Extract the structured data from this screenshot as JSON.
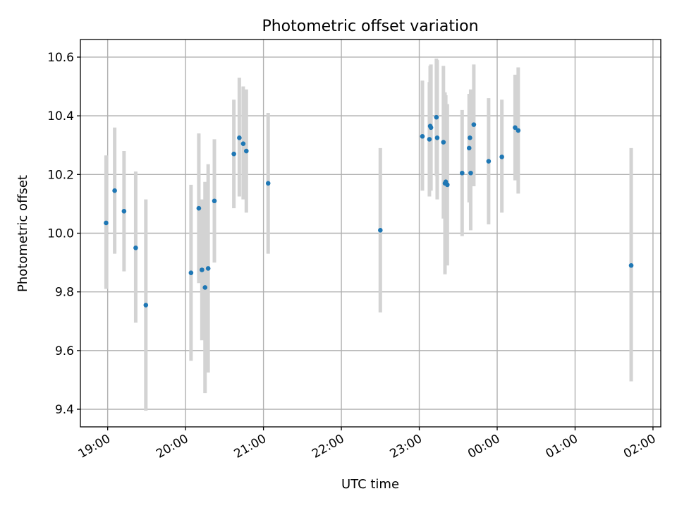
{
  "chart_data": {
    "type": "scatter",
    "title": "Photometric offset variation",
    "xlabel": "UTC time",
    "ylabel": "Photometric offset",
    "xlim_hours": [
      18.65,
      26.1
    ],
    "ylim": [
      9.34,
      10.66
    ],
    "yticks": [
      9.4,
      9.6,
      9.8,
      10.0,
      10.2,
      10.4,
      10.6
    ],
    "ytick_labels": [
      "9.4",
      "9.6",
      "9.8",
      "10.0",
      "10.2",
      "10.4",
      "10.6"
    ],
    "xticks_hours": [
      19,
      20,
      21,
      22,
      23,
      24,
      25,
      26
    ],
    "xtick_labels": [
      "19:00",
      "20:00",
      "21:00",
      "22:00",
      "23:00",
      "00:00",
      "01:00",
      "02:00"
    ],
    "grid": true,
    "marker_color": "#1f77b4",
    "errorbar_color": "#d3d3d3",
    "points": [
      {
        "t": 18.98,
        "y": 10.035,
        "lo": 9.81,
        "hi": 10.265
      },
      {
        "t": 19.09,
        "y": 10.145,
        "lo": 9.93,
        "hi": 10.36
      },
      {
        "t": 19.21,
        "y": 10.075,
        "lo": 9.87,
        "hi": 10.28
      },
      {
        "t": 19.36,
        "y": 9.95,
        "lo": 9.695,
        "hi": 10.21
      },
      {
        "t": 19.49,
        "y": 9.755,
        "lo": 9.395,
        "hi": 10.115
      },
      {
        "t": 20.07,
        "y": 9.865,
        "lo": 9.565,
        "hi": 10.165
      },
      {
        "t": 20.17,
        "y": 10.085,
        "lo": 9.83,
        "hi": 10.34
      },
      {
        "t": 20.21,
        "y": 9.875,
        "lo": 9.635,
        "hi": 10.115
      },
      {
        "t": 20.25,
        "y": 9.815,
        "lo": 9.455,
        "hi": 10.175
      },
      {
        "t": 20.29,
        "y": 9.88,
        "lo": 9.525,
        "hi": 10.235
      },
      {
        "t": 20.37,
        "y": 10.11,
        "lo": 9.9,
        "hi": 10.32
      },
      {
        "t": 20.62,
        "y": 10.27,
        "lo": 10.085,
        "hi": 10.455
      },
      {
        "t": 20.69,
        "y": 10.325,
        "lo": 10.125,
        "hi": 10.53
      },
      {
        "t": 20.74,
        "y": 10.305,
        "lo": 10.115,
        "hi": 10.5
      },
      {
        "t": 20.78,
        "y": 10.28,
        "lo": 10.07,
        "hi": 10.49
      },
      {
        "t": 21.06,
        "y": 10.17,
        "lo": 9.93,
        "hi": 10.41
      },
      {
        "t": 22.5,
        "y": 10.01,
        "lo": 9.73,
        "hi": 10.29
      },
      {
        "t": 23.04,
        "y": 10.33,
        "lo": 10.145,
        "hi": 10.52
      },
      {
        "t": 23.13,
        "y": 10.32,
        "lo": 10.125,
        "hi": 10.515
      },
      {
        "t": 23.14,
        "y": 10.365,
        "lo": 10.16,
        "hi": 10.57
      },
      {
        "t": 23.15,
        "y": 10.36,
        "lo": 10.145,
        "hi": 10.575
      },
      {
        "t": 23.22,
        "y": 10.395,
        "lo": 10.195,
        "hi": 10.595
      },
      {
        "t": 23.23,
        "y": 10.325,
        "lo": 10.115,
        "hi": 10.59
      },
      {
        "t": 23.31,
        "y": 10.31,
        "lo": 10.05,
        "hi": 10.57
      },
      {
        "t": 23.33,
        "y": 10.17,
        "lo": 9.86,
        "hi": 10.48
      },
      {
        "t": 23.34,
        "y": 10.175,
        "lo": 9.96,
        "hi": 10.47
      },
      {
        "t": 23.36,
        "y": 10.165,
        "lo": 9.89,
        "hi": 10.44
      },
      {
        "t": 23.55,
        "y": 10.205,
        "lo": 9.99,
        "hi": 10.42
      },
      {
        "t": 23.64,
        "y": 10.29,
        "lo": 10.105,
        "hi": 10.475
      },
      {
        "t": 23.65,
        "y": 10.325,
        "lo": 10.135,
        "hi": 10.46
      },
      {
        "t": 23.66,
        "y": 10.205,
        "lo": 10.01,
        "hi": 10.49
      },
      {
        "t": 23.7,
        "y": 10.37,
        "lo": 10.16,
        "hi": 10.575
      },
      {
        "t": 23.89,
        "y": 10.245,
        "lo": 10.03,
        "hi": 10.46
      },
      {
        "t": 24.06,
        "y": 10.26,
        "lo": 10.07,
        "hi": 10.455
      },
      {
        "t": 24.23,
        "y": 10.36,
        "lo": 10.18,
        "hi": 10.54
      },
      {
        "t": 24.27,
        "y": 10.35,
        "lo": 10.135,
        "hi": 10.565
      },
      {
        "t": 25.72,
        "y": 9.89,
        "lo": 9.495,
        "hi": 10.29
      }
    ]
  }
}
